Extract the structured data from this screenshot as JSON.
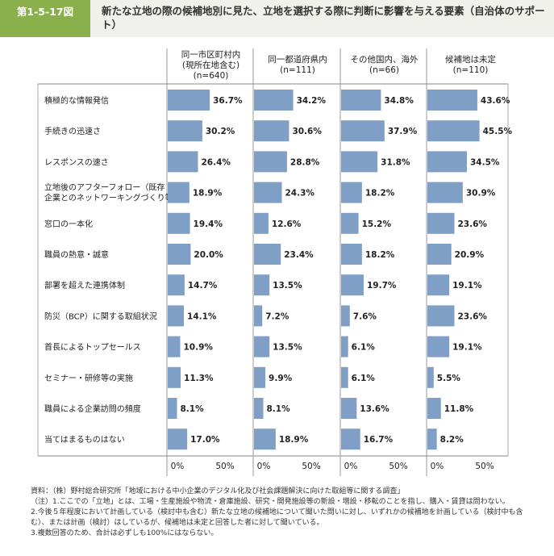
{
  "header": {
    "figure_number": "第1-5-17図",
    "title": "新たな立地の際の候補地別に見た、立地を選択する際に判断に影響を与える要素（自治体のサポート）"
  },
  "chart_data": {
    "type": "bar",
    "orientation": "horizontal",
    "categories": [
      "積極的な情報発信",
      "手続きの迅速さ",
      "レスポンスの速さ",
      "立地後のアフターフォロー（既存企業とのネットワーキングづくり等）",
      "窓口の一本化",
      "職員の熱意・誠意",
      "部署を超えた連携体制",
      "防災（BCP）に関する取組状況",
      "首長によるトップセールス",
      "セミナー・研修等の実施",
      "職員による企業訪問の頻度",
      "当てはまるものはない"
    ],
    "series": [
      {
        "name": "同一市区町村内（現所在地含む）(n=640)",
        "values": [
          36.7,
          30.2,
          26.4,
          18.9,
          19.4,
          20.0,
          14.7,
          14.1,
          10.9,
          11.3,
          8.1,
          17.0
        ]
      },
      {
        "name": "同一都道府県内(n=111)",
        "values": [
          34.2,
          30.6,
          28.8,
          24.3,
          12.6,
          23.4,
          13.5,
          7.2,
          13.5,
          9.9,
          8.1,
          18.9
        ]
      },
      {
        "name": "その他国内、海外(n=66)",
        "values": [
          34.8,
          37.9,
          31.8,
          18.2,
          15.2,
          18.2,
          19.7,
          7.6,
          6.1,
          6.1,
          13.6,
          16.7
        ]
      },
      {
        "name": "候補地は未定(n=110)",
        "values": [
          43.6,
          45.5,
          34.5,
          30.9,
          23.6,
          20.9,
          19.1,
          23.6,
          19.1,
          5.5,
          11.8,
          8.2
        ]
      }
    ],
    "series_headers": [
      [
        "同一市区町村内",
        "(現所在地含む)",
        "(n=640)"
      ],
      [
        "同一都道府県内",
        "(n=111)"
      ],
      [
        "その他国内、海外",
        "(n=66)"
      ],
      [
        "候補地は未定",
        "(n=110)"
      ]
    ],
    "category_lines": [
      [
        "積極的な情報発信"
      ],
      [
        "手続きの迅速さ"
      ],
      [
        "レスポンスの速さ"
      ],
      [
        "立地後のアフターフォロー（既存",
        "企業とのネットワーキングづくり等）"
      ],
      [
        "窓口の一本化"
      ],
      [
        "職員の熱意・誠意"
      ],
      [
        "部署を超えた連携体制"
      ],
      [
        "防災（BCP）に関する取組状況"
      ],
      [
        "首長によるトップセールス"
      ],
      [
        "セミナー・研修等の実施"
      ],
      [
        "職員による企業訪問の頻度"
      ],
      [
        "当てはまるものはない"
      ]
    ],
    "xlim": [
      0,
      100
    ],
    "xticks": [
      0,
      50
    ],
    "xtick_labels": [
      "0%",
      "50%"
    ],
    "value_suffix": "%",
    "bar_color": "#7f9fc6",
    "grid": false,
    "legend": "none"
  },
  "notes": [
    "資料：（株）野村総合研究所「地域における中小企業のデジタル化及び社会課題解決に向けた取組等に関する調査」",
    "（注）1.ここでの「立地」とは、工場・生産施設や物流・倉庫施設、研究・開発施設等の新設・増設・移転のことを指し、購入・賃貸は問わない。",
    "2.今後５年程度において計画している（検討中も含む）新たな立地の候補地について聞いた問いに対し、いずれかの候補地を計画している（検討中も含む）、または計画（検討）はしているが、候補地は未定と回答した者に対して聞いている。",
    "3.複数回答のため、合計は必ずしも100%にはならない。"
  ]
}
